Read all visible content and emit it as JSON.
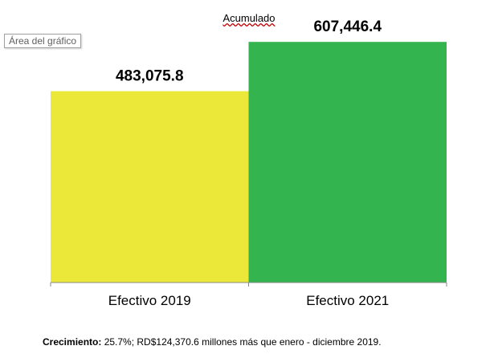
{
  "tooltip": "Área del gráfico",
  "footnote": {
    "label": "Crecimiento:",
    "text": " 25.7%; RD$124,370.6  millones más que enero - diciembre 2019."
  },
  "chart_data": {
    "type": "bar",
    "title": "Acumulado",
    "categories": [
      "Efectivo 2019",
      "Efectivo 2021"
    ],
    "values": [
      483075.8,
      607446.4
    ],
    "value_labels": [
      "483,075.8",
      "607,446.4"
    ],
    "colors": [
      "#ebe83a",
      "#33b44f"
    ],
    "ylim": [
      0,
      620000
    ],
    "grid": false,
    "legend": "none"
  }
}
